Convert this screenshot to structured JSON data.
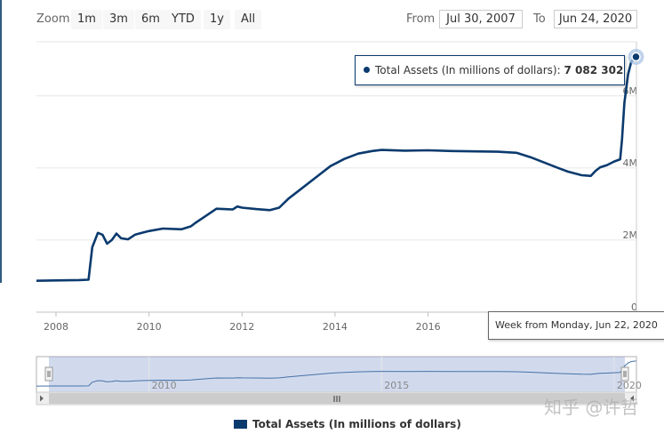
{
  "toolbar": {
    "zoom_label": "Zoom",
    "buttons": [
      {
        "label": "1m",
        "state": "disabled"
      },
      {
        "label": "3m",
        "state": "normal"
      },
      {
        "label": "6m",
        "state": "normal"
      },
      {
        "label": "YTD",
        "state": "normal"
      },
      {
        "label": "1y",
        "state": "normal"
      },
      {
        "label": "All",
        "state": "active"
      }
    ],
    "from_label": "From",
    "from_value": "Jul 30, 2007",
    "to_label": "To",
    "to_value": "Jun 24, 2020"
  },
  "chart_data": {
    "type": "line",
    "title": "",
    "xlabel": "",
    "ylabel": "",
    "x_ticks": [
      "2008",
      "2010",
      "2012",
      "2014",
      "2016"
    ],
    "y_ticks": [
      {
        "value": 0,
        "label": "0"
      },
      {
        "value": 2000000,
        "label": "2M"
      },
      {
        "value": 4000000,
        "label": "4M"
      },
      {
        "value": 6000000,
        "label": "6M"
      }
    ],
    "xlim": [
      2007.58,
      2020.48
    ],
    "ylim": [
      0,
      7500000
    ],
    "grid": true,
    "series": [
      {
        "name": "Total Assets (In millions of dollars)",
        "color": "#0b3a6e",
        "x": [
          2007.58,
          2008.0,
          2008.5,
          2008.7,
          2008.78,
          2008.9,
          2009.0,
          2009.1,
          2009.2,
          2009.3,
          2009.4,
          2009.55,
          2009.7,
          2009.85,
          2010.0,
          2010.3,
          2010.7,
          2010.9,
          2011.0,
          2011.2,
          2011.45,
          2011.8,
          2011.9,
          2012.0,
          2012.3,
          2012.6,
          2012.8,
          2013.0,
          2013.3,
          2013.6,
          2013.9,
          2014.2,
          2014.5,
          2014.8,
          2015.0,
          2015.5,
          2016.0,
          2016.5,
          2017.0,
          2017.5,
          2017.9,
          2018.2,
          2018.5,
          2018.8,
          2019.0,
          2019.3,
          2019.5,
          2019.6,
          2019.7,
          2019.85,
          2020.0,
          2020.13,
          2020.17,
          2020.22,
          2020.3,
          2020.37,
          2020.47
        ],
        "values": [
          870000,
          880000,
          890000,
          900000,
          1800000,
          2200000,
          2150000,
          1900000,
          2000000,
          2180000,
          2050000,
          2020000,
          2150000,
          2200000,
          2250000,
          2320000,
          2300000,
          2380000,
          2480000,
          2650000,
          2870000,
          2850000,
          2930000,
          2900000,
          2860000,
          2830000,
          2900000,
          3150000,
          3450000,
          3750000,
          4050000,
          4250000,
          4400000,
          4470000,
          4500000,
          4480000,
          4490000,
          4470000,
          4460000,
          4450000,
          4420000,
          4300000,
          4150000,
          4000000,
          3900000,
          3800000,
          3780000,
          3920000,
          4020000,
          4080000,
          4180000,
          4240000,
          4800000,
          5800000,
          6600000,
          6950000,
          7082302
        ]
      }
    ],
    "tooltip": {
      "series_label": "Total Assets (In millions of dollars):",
      "value_label": "7 082 302",
      "date_label": "Week from Monday, Jun 22, 2020"
    },
    "navigator": {
      "x_ticks": [
        "2010",
        "2015",
        "2020"
      ],
      "xlim": [
        2007.58,
        2020.48
      ]
    },
    "legend": {
      "label": "Total Assets (In millions of dollars)",
      "placement": "bottom"
    }
  },
  "watermark": "知乎 @许哲"
}
